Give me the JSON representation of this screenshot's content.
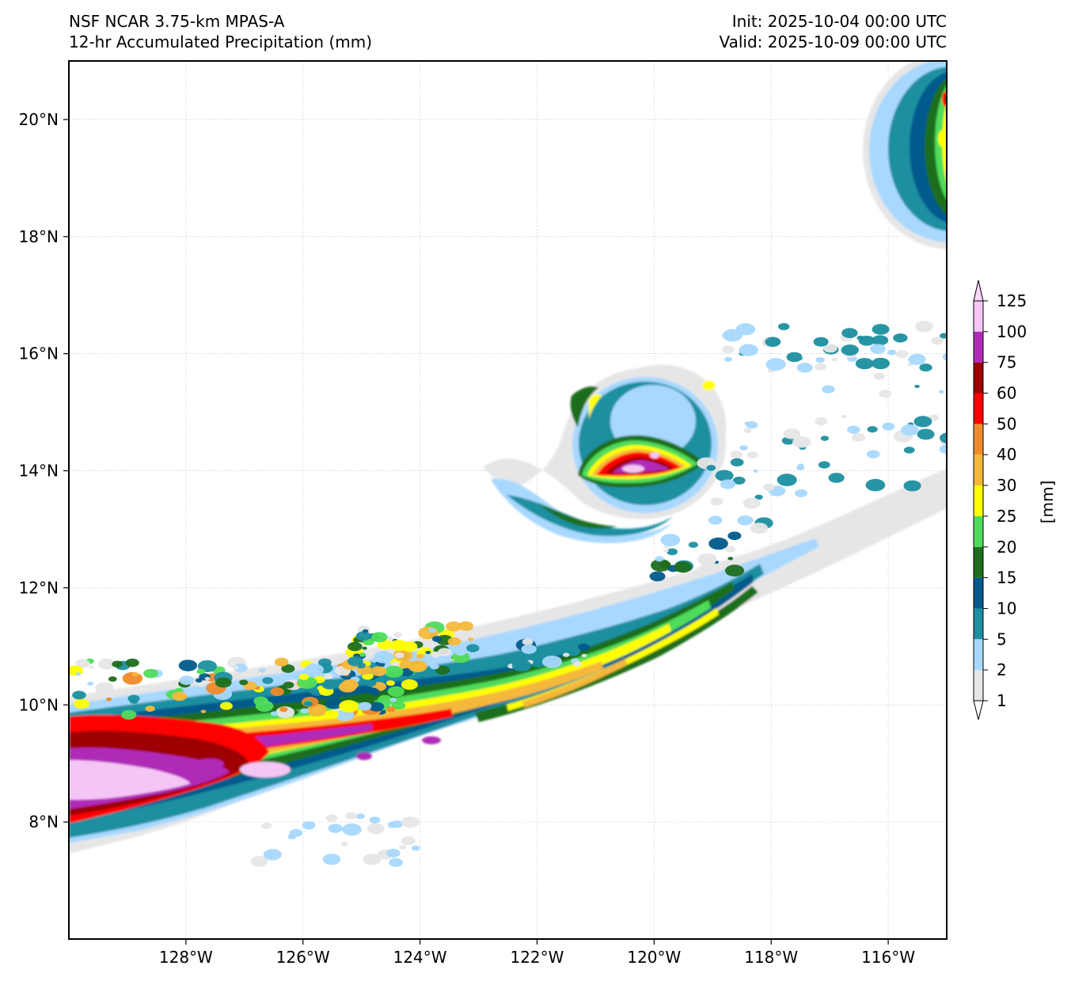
{
  "header": {
    "model": "NSF NCAR 3.75-km MPAS-A",
    "field": "12-hr Accumulated Precipitation (mm)",
    "init": "Init: 2025-10-04 00:00 UTC",
    "valid": "Valid: 2025-10-09 00:00 UTC"
  },
  "map": {
    "lon_range": [
      -130,
      -115
    ],
    "lat_range": [
      6,
      21
    ],
    "lon_ticks": [
      {
        "value": -128,
        "label": "128°W"
      },
      {
        "value": -126,
        "label": "126°W"
      },
      {
        "value": -124,
        "label": "124°W"
      },
      {
        "value": -122,
        "label": "122°W"
      },
      {
        "value": -120,
        "label": "120°W"
      },
      {
        "value": -118,
        "label": "118°W"
      },
      {
        "value": -116,
        "label": "116°W"
      }
    ],
    "lat_ticks": [
      {
        "value": 8,
        "label": "8°N"
      },
      {
        "value": 10,
        "label": "10°N"
      },
      {
        "value": 12,
        "label": "12°N"
      },
      {
        "value": 14,
        "label": "14°N"
      },
      {
        "value": 16,
        "label": "16°N"
      },
      {
        "value": 18,
        "label": "18°N"
      },
      {
        "value": 20,
        "label": "20°N"
      }
    ],
    "gridlines": true
  },
  "colorbar": {
    "unit_label": "[mm]",
    "levels": [
      "1",
      "2",
      "5",
      "10",
      "15",
      "20",
      "25",
      "30",
      "40",
      "50",
      "60",
      "75",
      "100",
      "125"
    ],
    "colors": [
      "#e6e6e6",
      "#a8d8ff",
      "#1c8fa0",
      "#005a8c",
      "#1e6e1e",
      "#4fdc5a",
      "#ffff00",
      "#f6b83a",
      "#ef8a2a",
      "#ff0000",
      "#9e0000",
      "#b02cb8",
      "#f5c6f5"
    ],
    "extend": "both"
  },
  "precip_features": [
    {
      "feature": "tropical cyclone band NE corner",
      "center_lon": -115.0,
      "center_lat": 19.6,
      "max_level": "50"
    },
    {
      "feature": "tropical cyclone rainband",
      "center_lon": -120.3,
      "center_lat": 14.1,
      "max_level": "100"
    },
    {
      "feature": "ITCZ band",
      "from_lon": -130.0,
      "from_lat": 8.8,
      "to_lon": -118.2,
      "to_lat": 12.5,
      "max_level": "100"
    }
  ]
}
